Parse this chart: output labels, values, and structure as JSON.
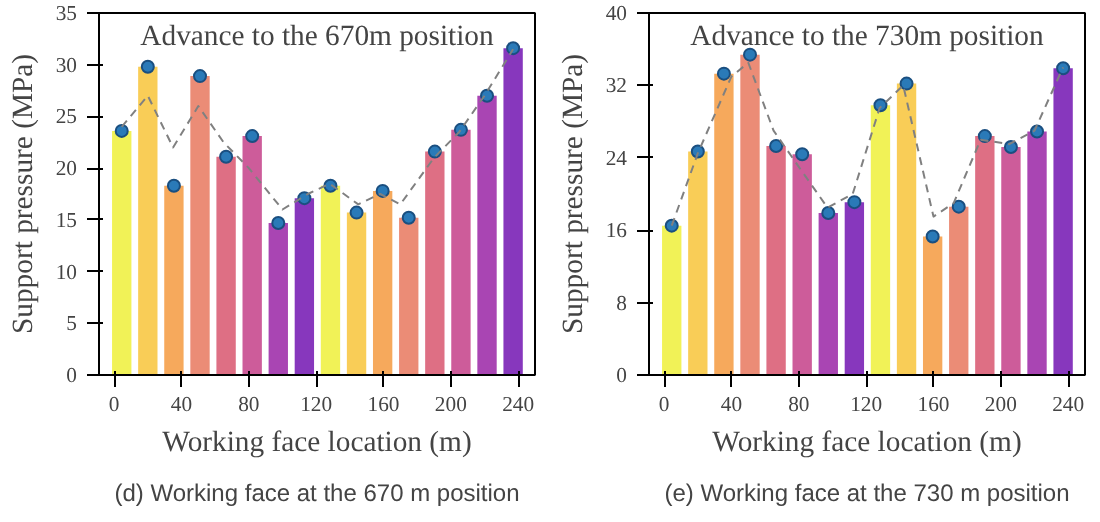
{
  "chart_data": [
    {
      "type": "bar",
      "title": "(d) Working face at the 670 m position",
      "xlabel": "Working face location (m)",
      "ylabel": "Support pressure (MPa)",
      "annotations": [
        "Advance to the 670m position"
      ],
      "xlim": [
        -9,
        250
      ],
      "xticks": [
        0,
        40,
        80,
        120,
        160,
        200,
        240
      ],
      "ylim": [
        0,
        35
      ],
      "yticks": [
        0,
        5,
        10,
        15,
        20,
        25,
        30,
        35
      ],
      "grid": false,
      "series": [
        {
          "x": [
            4.5,
            20,
            35.5,
            51,
            66.5,
            82,
            97.5,
            113,
            128.5,
            144,
            159.5,
            175,
            190.5,
            206,
            221.5,
            237
          ],
          "values": [
            23.6,
            29.8,
            18.3,
            28.9,
            21.1,
            23.1,
            14.7,
            17.1,
            18.3,
            15.7,
            17.8,
            15.2,
            21.6,
            23.7,
            27.0,
            31.6
          ],
          "colors": [
            "#eef03a",
            "#f8c43a",
            "#f59a40",
            "#e8785e",
            "#d8566e",
            "#c44088",
            "#9a24a6",
            "#7214b2",
            "#eef03a",
            "#f8c43a",
            "#f59a40",
            "#e8785e",
            "#d8566e",
            "#c44088",
            "#9a24a6",
            "#7214b2"
          ]
        },
        {
          "type": "scatter",
          "marker": "circle",
          "color": "#2a7ab8",
          "x": [
            4.5,
            20,
            35.5,
            51,
            66.5,
            82,
            97.5,
            113,
            128.5,
            144,
            159.5,
            175,
            190.5,
            206,
            221.5,
            237
          ],
          "values": [
            23.6,
            29.8,
            18.3,
            28.9,
            21.1,
            23.1,
            14.7,
            17.1,
            18.3,
            15.7,
            17.8,
            15.2,
            21.6,
            23.7,
            27.0,
            31.6
          ]
        },
        {
          "type": "line",
          "line_style": "dashed",
          "color": "#808080",
          "x": [
            4.5,
            20,
            35,
            50,
            65,
            80,
            100,
            115,
            128,
            145,
            158,
            170,
            190,
            205,
            220,
            237
          ],
          "values": [
            24,
            27,
            22,
            26,
            22.5,
            20,
            16,
            17.5,
            18.5,
            16.5,
            17.5,
            16.5,
            21,
            23.5,
            27,
            31.5
          ]
        }
      ]
    },
    {
      "type": "bar",
      "title": "(e) Working face at the 730 m position",
      "xlabel": "Working face location (m)",
      "ylabel": "Support pressure (MPa)",
      "annotations": [
        "Advance to the 730m position"
      ],
      "xlim": [
        -9,
        250
      ],
      "xticks": [
        0,
        40,
        80,
        120,
        160,
        200,
        240
      ],
      "ylim": [
        0,
        40
      ],
      "yticks": [
        0,
        8,
        16,
        24,
        32,
        40
      ],
      "grid": false,
      "series": [
        {
          "x": [
            4.5,
            20,
            35.5,
            51,
            66.5,
            82,
            97.5,
            113,
            128.5,
            144,
            159.5,
            175,
            190.5,
            206,
            221.5,
            237
          ],
          "values": [
            16.5,
            24.7,
            33.3,
            35.4,
            25.3,
            24.4,
            17.9,
            19.1,
            29.8,
            32.2,
            15.3,
            18.6,
            26.4,
            25.2,
            26.9,
            33.9
          ],
          "colors": [
            "#eef03a",
            "#f8c43a",
            "#f59a40",
            "#e8785e",
            "#d8566e",
            "#c44088",
            "#9a24a6",
            "#7214b2",
            "#eef03a",
            "#f8c43a",
            "#f59a40",
            "#e8785e",
            "#d8566e",
            "#c44088",
            "#9a24a6",
            "#7214b2"
          ]
        },
        {
          "type": "scatter",
          "marker": "circle",
          "color": "#2a7ab8",
          "x": [
            4.5,
            20,
            35.5,
            51,
            66.5,
            82,
            97.5,
            113,
            128.5,
            144,
            159.5,
            175,
            190.5,
            206,
            221.5,
            237
          ],
          "values": [
            16.5,
            24.7,
            33.3,
            35.4,
            25.3,
            24.4,
            17.9,
            19.1,
            29.8,
            32.2,
            15.3,
            18.6,
            26.4,
            25.2,
            26.9,
            33.9
          ]
        },
        {
          "type": "line",
          "line_style": "dashed",
          "color": "#808080",
          "x": [
            4.5,
            20,
            40,
            50,
            65,
            80,
            97,
            112,
            128,
            142,
            160,
            172,
            188,
            205,
            220,
            237
          ],
          "values": [
            16.5,
            24.5,
            33,
            34.5,
            27,
            23,
            18.5,
            20,
            29.5,
            32,
            17.5,
            19,
            26,
            25.5,
            27,
            34
          ]
        }
      ]
    }
  ]
}
